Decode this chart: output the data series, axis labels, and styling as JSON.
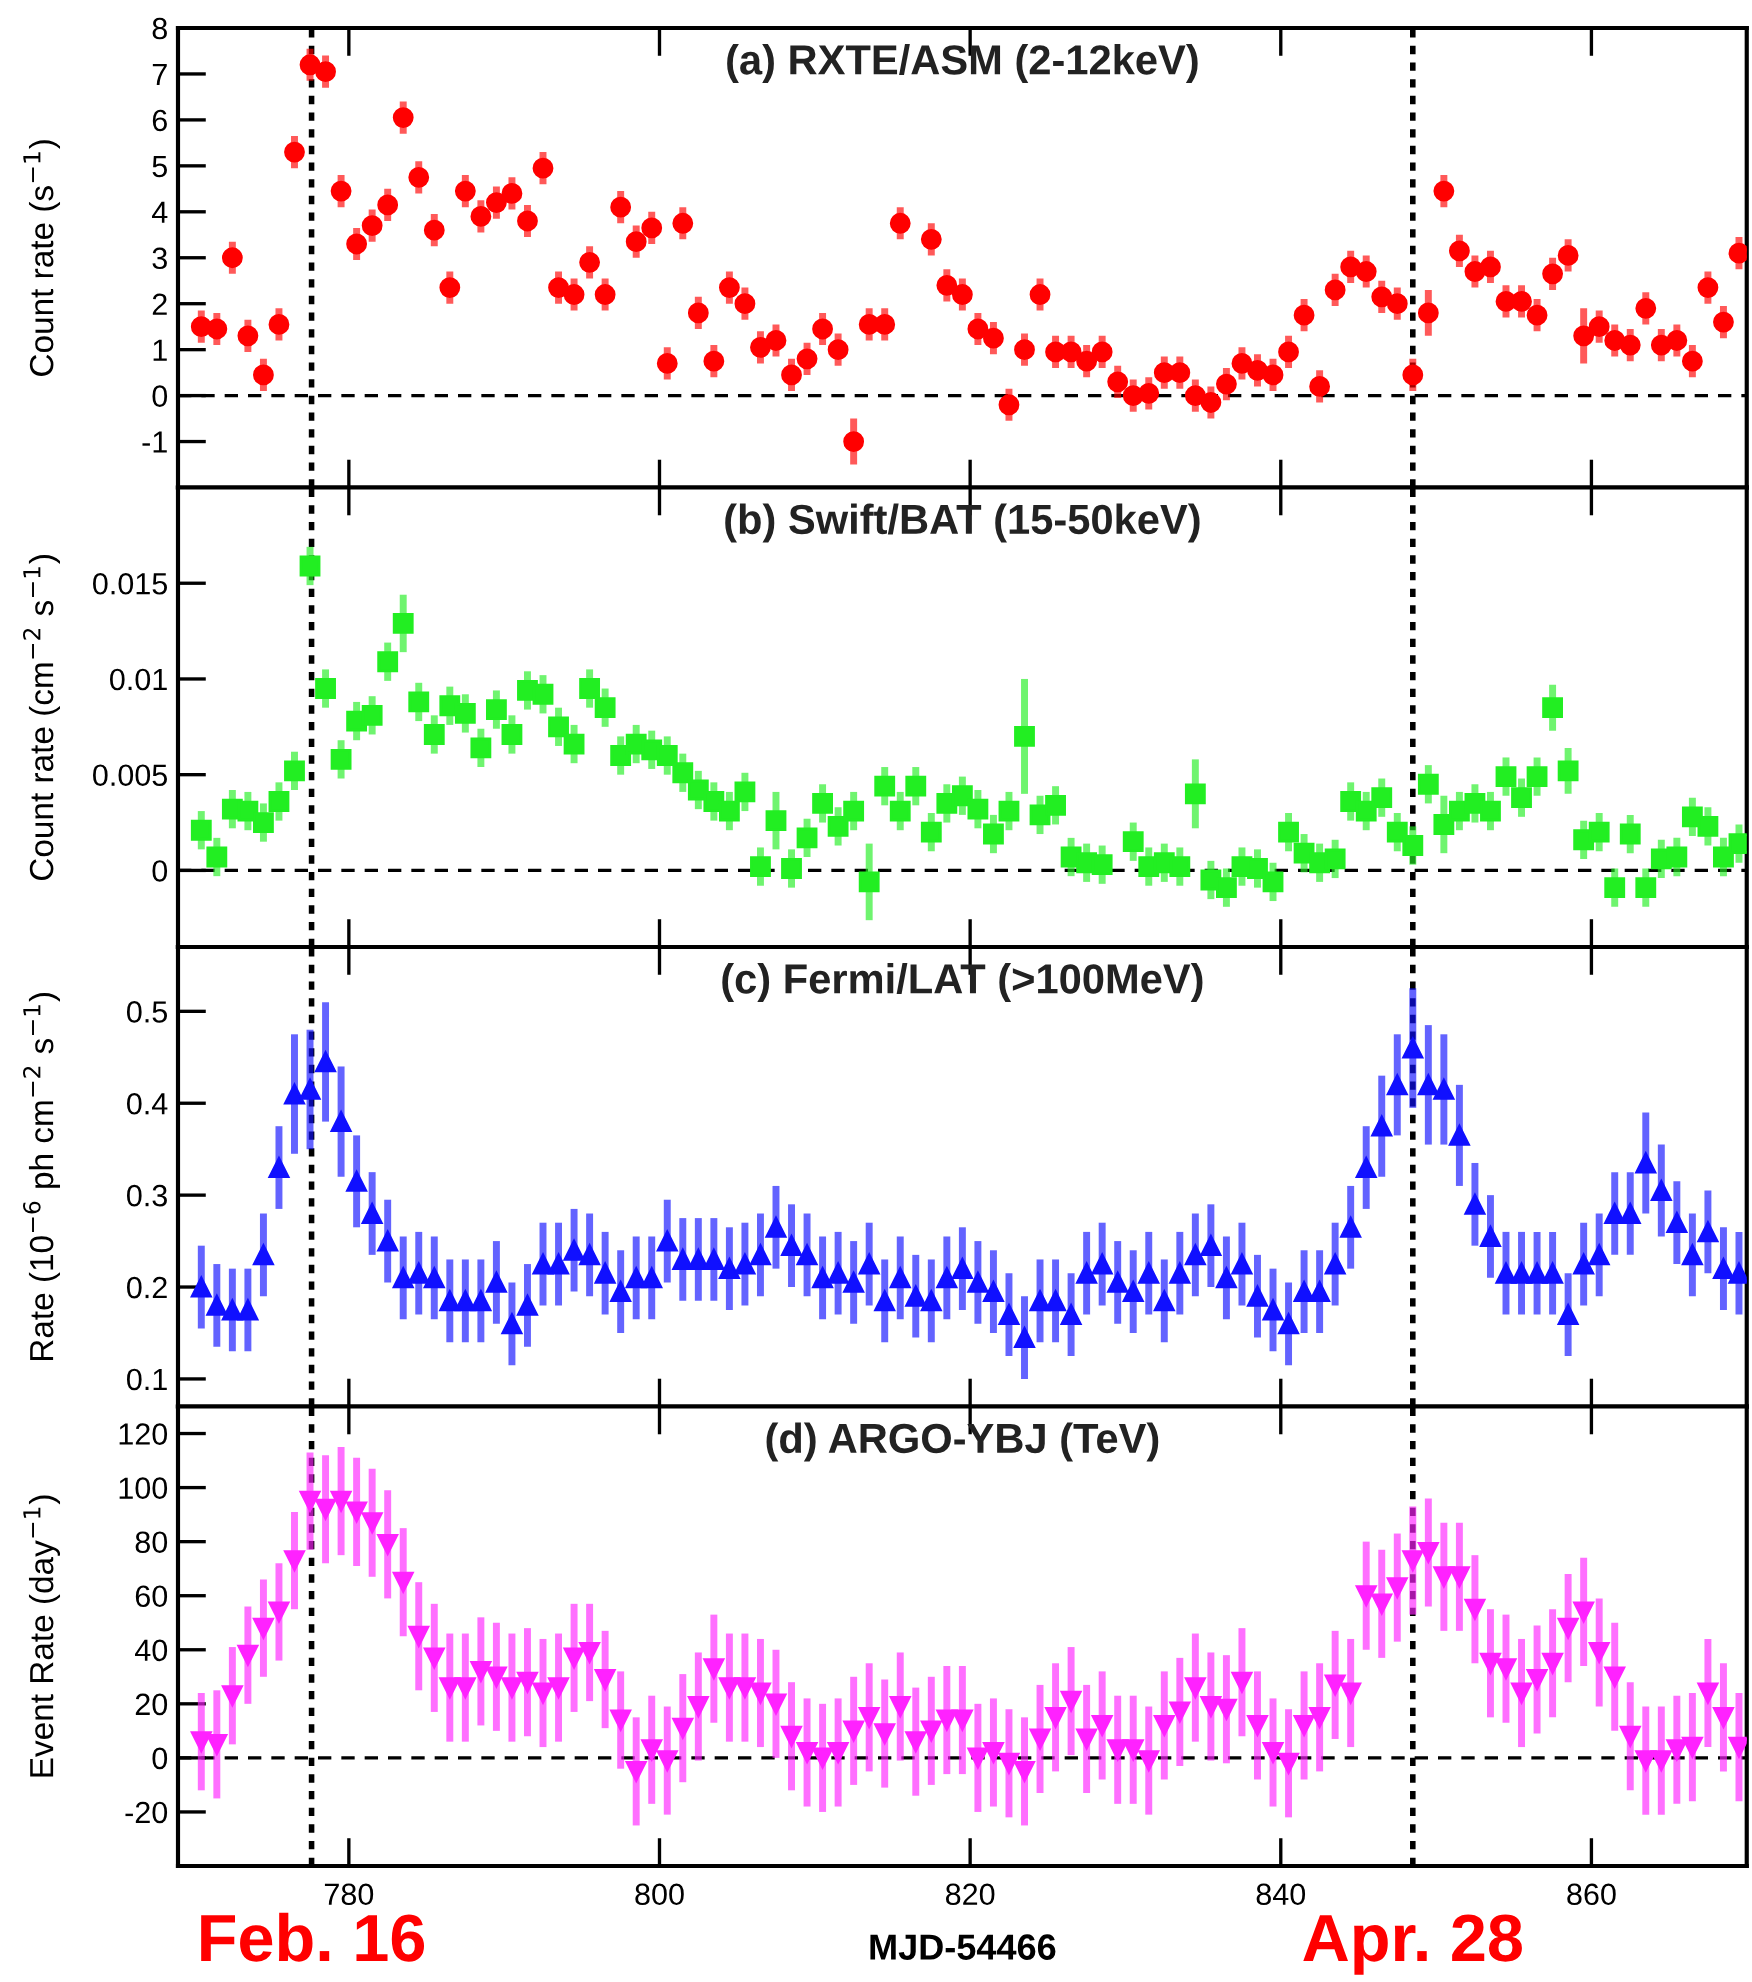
{
  "chart_data": [
    {
      "type": "scatter",
      "title": "(a) RXTE/ASM (2-12keV)",
      "ylabel": "Count rate (s$^{−1}$)",
      "marker": "circle",
      "xlim": [
        769,
        870
      ],
      "ylim": [
        -2,
        8
      ],
      "xticks": [
        780,
        800,
        820,
        840,
        860
      ],
      "yticks": [
        -1,
        0,
        1,
        2,
        3,
        4,
        5,
        6,
        7,
        8
      ],
      "tick_labels": "y",
      "ref_lines": [
        {
          "axis": "x",
          "value": 777.6,
          "line_style": "dotted",
          "color": "#000000"
        },
        {
          "axis": "x",
          "value": 848.5,
          "line_style": "dotted",
          "color": "#000000"
        },
        {
          "axis": "y",
          "value": 0,
          "line_style": "dashed",
          "color": "#000000"
        }
      ],
      "series": [
        {
          "color": "#ff0000",
          "x": [
            770.5,
            771.5,
            772.5,
            773.5,
            774.5,
            775.5,
            776.5,
            777.5,
            778.5,
            779.5,
            780.5,
            781.5,
            782.5,
            783.5,
            784.5,
            785.5,
            786.5,
            787.5,
            788.5,
            789.5,
            790.5,
            791.5,
            792.5,
            793.5,
            794.5,
            795.5,
            796.5,
            797.5,
            798.5,
            799.5,
            800.5,
            801.5,
            802.5,
            803.5,
            804.5,
            805.5,
            806.5,
            807.5,
            808.5,
            809.5,
            810.5,
            811.5,
            812.5,
            813.5,
            814.5,
            815.5,
            816.5,
            817.5,
            818.5,
            819.5,
            820.5,
            821.5,
            822.5,
            823.5,
            824.5,
            825.5,
            826.5,
            827.5,
            828.5,
            829.5,
            830.5,
            831.5,
            832.5,
            833.5,
            834.5,
            835.5,
            836.5,
            837.5,
            838.5,
            839.5,
            840.5,
            841.5,
            842.5,
            843.5,
            844.5,
            845.5,
            846.5,
            847.5,
            848.5,
            849.5,
            850.5,
            851.5,
            852.5,
            853.5,
            854.5,
            855.5,
            856.5,
            857.5,
            858.5,
            859.5,
            860.5,
            861.5,
            862.5,
            863.5,
            864.5,
            865.5,
            866.5,
            867.5,
            868.5,
            869.5
          ],
          "values": [
            1.5,
            1.45,
            3.0,
            1.3,
            0.45,
            1.55,
            5.3,
            7.2,
            7.05,
            4.45,
            3.3,
            3.7,
            4.15,
            6.05,
            4.75,
            3.6,
            2.35,
            4.45,
            3.9,
            4.2,
            4.4,
            3.8,
            4.95,
            2.35,
            2.2,
            2.9,
            2.2,
            4.1,
            3.35,
            3.65,
            0.7,
            3.75,
            1.8,
            0.75,
            2.35,
            2.0,
            1.05,
            1.2,
            0.45,
            0.8,
            1.45,
            1.0,
            -1.0,
            1.55,
            1.55,
            3.75,
            null,
            3.4,
            2.4,
            2.2,
            1.45,
            1.25,
            -0.2,
            1.0,
            2.2,
            0.95,
            0.95,
            0.75,
            0.95,
            0.3,
            0.0,
            0.05,
            0.5,
            0.5,
            0.0,
            -0.15,
            0.25,
            0.7,
            0.55,
            0.45,
            0.95,
            1.75,
            0.2,
            2.3,
            2.8,
            2.7,
            2.15,
            2.0,
            0.45,
            1.8,
            4.45,
            3.15,
            2.7,
            2.8,
            2.05,
            2.05,
            1.75,
            2.65,
            3.05,
            1.3,
            1.5,
            1.2,
            1.1,
            1.9,
            1.1,
            1.2,
            0.75,
            2.35,
            1.6,
            3.1
          ],
          "errors": [
            0.35,
            0.35,
            0.35,
            0.35,
            0.35,
            0.35,
            0.35,
            0.35,
            0.35,
            0.35,
            0.35,
            0.35,
            0.35,
            0.35,
            0.35,
            0.35,
            0.35,
            0.35,
            0.35,
            0.35,
            0.35,
            0.35,
            0.35,
            0.35,
            0.35,
            0.35,
            0.35,
            0.35,
            0.35,
            0.35,
            0.35,
            0.35,
            0.35,
            0.35,
            0.35,
            0.35,
            0.35,
            0.35,
            0.35,
            0.35,
            0.35,
            0.35,
            0.5,
            0.35,
            0.35,
            0.35,
            null,
            0.35,
            0.35,
            0.35,
            0.35,
            0.35,
            0.35,
            0.35,
            0.35,
            0.35,
            0.35,
            0.35,
            0.35,
            0.35,
            0.35,
            0.35,
            0.35,
            0.35,
            0.35,
            0.35,
            0.35,
            0.35,
            0.35,
            0.35,
            0.35,
            0.35,
            0.35,
            0.35,
            0.35,
            0.35,
            0.35,
            0.35,
            0.35,
            0.5,
            0.35,
            0.35,
            0.35,
            0.35,
            0.35,
            0.35,
            0.35,
            0.35,
            0.35,
            0.6,
            0.35,
            0.35,
            0.35,
            0.35,
            0.35,
            0.35,
            0.35,
            0.35,
            0.35,
            0.35
          ]
        }
      ]
    },
    {
      "type": "scatter",
      "title": "(b) Swift/BAT (15-50keV)",
      "ylabel": "Count rate (cm$^{−2}$ s$^{−1}$)",
      "marker": "square",
      "xlim": [
        769,
        870
      ],
      "ylim": [
        -0.004,
        0.02
      ],
      "xticks": [
        780,
        800,
        820,
        840,
        860
      ],
      "yticks": [
        0,
        0.005,
        0.01,
        0.015
      ],
      "tick_labels": "y",
      "ref_lines": [
        {
          "axis": "x",
          "value": 777.6,
          "line_style": "dotted",
          "color": "#000000"
        },
        {
          "axis": "x",
          "value": 848.5,
          "line_style": "dotted",
          "color": "#000000"
        },
        {
          "axis": "y",
          "value": 0,
          "line_style": "dashed",
          "color": "#000000"
        }
      ],
      "series": [
        {
          "color": "#22ee22",
          "x": [
            770.5,
            771.5,
            772.5,
            773.5,
            774.5,
            775.5,
            776.5,
            777.5,
            778.5,
            779.5,
            780.5,
            781.5,
            782.5,
            783.5,
            784.5,
            785.5,
            786.5,
            787.5,
            788.5,
            789.5,
            790.5,
            791.5,
            792.5,
            793.5,
            794.5,
            795.5,
            796.5,
            797.5,
            798.5,
            799.5,
            800.5,
            801.5,
            802.5,
            803.5,
            804.5,
            805.5,
            806.5,
            807.5,
            808.5,
            809.5,
            810.5,
            811.5,
            812.5,
            813.5,
            814.5,
            815.5,
            816.5,
            817.5,
            818.5,
            819.5,
            820.5,
            821.5,
            822.5,
            823.5,
            824.5,
            825.5,
            826.5,
            827.5,
            828.5,
            829.5,
            830.5,
            831.5,
            832.5,
            833.5,
            834.5,
            835.5,
            836.5,
            837.5,
            838.5,
            839.5,
            840.5,
            841.5,
            842.5,
            843.5,
            844.5,
            845.5,
            846.5,
            847.5,
            848.5,
            849.5,
            850.5,
            851.5,
            852.5,
            853.5,
            854.5,
            855.5,
            856.5,
            857.5,
            858.5,
            859.5,
            860.5,
            861.5,
            862.5,
            863.5,
            864.5,
            865.5,
            866.5,
            867.5,
            868.5,
            869.5
          ],
          "values": [
            0.0021,
            0.0007,
            0.0032,
            0.0031,
            0.0025,
            0.0036,
            0.0052,
            0.0159,
            0.0095,
            0.0058,
            0.0078,
            0.0081,
            0.0109,
            0.0129,
            0.0088,
            0.0071,
            0.0086,
            0.0082,
            0.0064,
            0.0084,
            0.0071,
            0.0094,
            0.0092,
            0.0075,
            0.0066,
            0.0095,
            0.0085,
            0.006,
            0.0066,
            0.0063,
            0.006,
            0.0051,
            0.0042,
            0.0036,
            0.0031,
            0.0041,
            0.0002,
            0.0026,
            0.0001,
            0.0017,
            0.0035,
            0.0023,
            0.0031,
            -0.0006,
            0.0044,
            0.0031,
            0.0044,
            0.002,
            0.0035,
            0.0039,
            0.0032,
            0.0019,
            0.0031,
            0.007,
            0.0029,
            0.0034,
            0.0007,
            0.0004,
            0.0003,
            null,
            0.0015,
            0.0002,
            0.0004,
            0.0002,
            0.004,
            -0.0005,
            -0.0009,
            0.0002,
            0.0001,
            -0.0006,
            0.002,
            0.0009,
            0.0004,
            0.0006,
            0.0036,
            0.0031,
            0.0038,
            0.002,
            0.0013,
            0.0045,
            0.0024,
            0.0031,
            0.0035,
            0.0031,
            0.0049,
            0.0038,
            0.0049,
            0.0085,
            0.0052,
            0.0016,
            0.002,
            -0.0009,
            0.0019,
            -0.0009,
            0.0006,
            0.0007,
            0.0028,
            0.0023,
            0.0007,
            0.0014
          ],
          "errors": [
            0.001,
            0.001,
            0.001,
            0.001,
            0.001,
            0.001,
            0.001,
            0.001,
            0.001,
            0.001,
            0.001,
            0.001,
            0.001,
            0.0015,
            0.001,
            0.001,
            0.001,
            0.001,
            0.001,
            0.001,
            0.001,
            0.001,
            0.001,
            0.001,
            0.001,
            0.001,
            0.001,
            0.001,
            0.001,
            0.001,
            0.001,
            0.001,
            0.001,
            0.001,
            0.001,
            0.001,
            0.001,
            0.0015,
            0.001,
            0.001,
            0.001,
            0.001,
            0.001,
            0.002,
            0.001,
            0.001,
            0.001,
            0.001,
            0.001,
            0.001,
            0.001,
            0.001,
            0.001,
            0.003,
            0.001,
            0.001,
            0.001,
            0.001,
            0.001,
            null,
            0.001,
            0.001,
            0.001,
            0.001,
            0.0018,
            0.001,
            0.001,
            0.001,
            0.001,
            0.001,
            0.001,
            0.001,
            0.001,
            0.001,
            0.001,
            0.001,
            0.001,
            0.001,
            0.001,
            0.001,
            0.0015,
            0.001,
            0.001,
            0.001,
            0.001,
            0.001,
            0.001,
            0.0012,
            0.0012,
            0.001,
            0.001,
            0.001,
            0.001,
            0.001,
            0.001,
            0.001,
            0.001,
            0.001,
            0.001,
            0.001
          ]
        }
      ]
    },
    {
      "type": "scatter",
      "title": "(c) Fermi/LAT (>100MeV)",
      "ylabel": "Rate (10$^{−6}$ ph cm$^{−2}$ s$^{−1}$)",
      "marker": "triangle",
      "xlim": [
        769,
        870
      ],
      "ylim": [
        0.07,
        0.57
      ],
      "xticks": [
        780,
        800,
        820,
        840,
        860
      ],
      "yticks": [
        0.1,
        0.2,
        0.3,
        0.4,
        0.5
      ],
      "tick_labels": "y",
      "ref_lines": [
        {
          "axis": "x",
          "value": 777.6,
          "line_style": "dotted",
          "color": "#000000"
        },
        {
          "axis": "x",
          "value": 848.5,
          "line_style": "dotted",
          "color": "#000000"
        }
      ],
      "series": [
        {
          "color": "#1010ff",
          "x": [
            770.5,
            771.5,
            772.5,
            773.5,
            774.5,
            775.5,
            776.5,
            777.5,
            778.5,
            779.5,
            780.5,
            781.5,
            782.5,
            783.5,
            784.5,
            785.5,
            786.5,
            787.5,
            788.5,
            789.5,
            790.5,
            791.5,
            792.5,
            793.5,
            794.5,
            795.5,
            796.5,
            797.5,
            798.5,
            799.5,
            800.5,
            801.5,
            802.5,
            803.5,
            804.5,
            805.5,
            806.5,
            807.5,
            808.5,
            809.5,
            810.5,
            811.5,
            812.5,
            813.5,
            814.5,
            815.5,
            816.5,
            817.5,
            818.5,
            819.5,
            820.5,
            821.5,
            822.5,
            823.5,
            824.5,
            825.5,
            826.5,
            827.5,
            828.5,
            829.5,
            830.5,
            831.5,
            832.5,
            833.5,
            834.5,
            835.5,
            836.5,
            837.5,
            838.5,
            839.5,
            840.5,
            841.5,
            842.5,
            843.5,
            844.5,
            845.5,
            846.5,
            847.5,
            848.5,
            849.5,
            850.5,
            851.5,
            852.5,
            853.5,
            854.5,
            855.5,
            856.5,
            857.5,
            858.5,
            859.5,
            860.5,
            861.5,
            862.5,
            863.5,
            864.5,
            865.5,
            866.5,
            867.5,
            868.5,
            869.5
          ],
          "values": [
            0.2,
            0.18,
            0.175,
            0.175,
            0.235,
            0.33,
            0.41,
            0.415,
            0.445,
            0.38,
            0.315,
            0.28,
            0.25,
            0.21,
            0.215,
            0.21,
            0.185,
            0.185,
            0.185,
            0.205,
            0.16,
            0.18,
            0.225,
            0.225,
            0.24,
            0.235,
            0.215,
            0.195,
            0.21,
            0.21,
            0.25,
            0.23,
            0.23,
            0.23,
            0.22,
            0.225,
            0.235,
            0.265,
            0.245,
            0.235,
            0.21,
            0.215,
            0.205,
            0.225,
            0.185,
            0.21,
            0.19,
            0.185,
            0.21,
            0.22,
            0.205,
            0.195,
            0.17,
            0.145,
            0.185,
            0.185,
            0.17,
            0.215,
            0.225,
            0.205,
            0.195,
            0.215,
            0.185,
            0.215,
            0.235,
            0.245,
            0.21,
            0.225,
            0.19,
            0.175,
            0.16,
            0.195,
            0.195,
            0.225,
            0.265,
            0.33,
            0.375,
            0.42,
            0.46,
            0.42,
            0.415,
            0.365,
            0.29,
            0.255,
            0.215,
            0.215,
            0.215,
            0.215,
            0.17,
            0.225,
            0.235,
            0.28,
            0.28,
            0.335,
            0.305,
            0.27,
            0.235,
            0.26,
            0.22,
            0.215
          ],
          "errors": [
            0.045,
            0.045,
            0.045,
            0.045,
            0.045,
            0.045,
            0.065,
            0.065,
            0.065,
            0.06,
            0.05,
            0.045,
            0.045,
            0.045,
            0.045,
            0.045,
            0.045,
            0.045,
            0.045,
            0.045,
            0.045,
            0.045,
            0.045,
            0.045,
            0.045,
            0.045,
            0.045,
            0.045,
            0.045,
            0.045,
            0.045,
            0.045,
            0.045,
            0.045,
            0.045,
            0.045,
            0.045,
            0.045,
            0.045,
            0.045,
            0.045,
            0.045,
            0.045,
            0.045,
            0.045,
            0.045,
            0.045,
            0.045,
            0.045,
            0.045,
            0.045,
            0.045,
            0.045,
            0.045,
            0.045,
            0.045,
            0.045,
            0.045,
            0.045,
            0.045,
            0.045,
            0.045,
            0.045,
            0.045,
            0.045,
            0.045,
            0.045,
            0.045,
            0.045,
            0.045,
            0.045,
            0.045,
            0.045,
            0.045,
            0.045,
            0.045,
            0.055,
            0.055,
            0.065,
            0.065,
            0.06,
            0.055,
            0.045,
            0.045,
            0.045,
            0.045,
            0.045,
            0.045,
            0.045,
            0.045,
            0.045,
            0.045,
            0.045,
            0.055,
            0.05,
            0.045,
            0.045,
            0.045,
            0.045,
            0.045
          ]
        }
      ]
    },
    {
      "type": "scatter",
      "title": "(d) ARGO-YBJ (TeV)",
      "ylabel": "Event Rate (day$^{−1}$)",
      "xlabel": "MJD-54466",
      "marker": "triangle_down",
      "xlim": [
        769,
        870
      ],
      "ylim": [
        -40,
        130
      ],
      "xticks": [
        780,
        800,
        820,
        840,
        860
      ],
      "yticks": [
        -20,
        0,
        20,
        40,
        60,
        80,
        100,
        120
      ],
      "ref_lines": [
        {
          "axis": "x",
          "value": 777.6,
          "line_style": "dotted",
          "color": "#000000",
          "label": "Feb. 16"
        },
        {
          "axis": "x",
          "value": 848.5,
          "line_style": "dotted",
          "color": "#000000",
          "label": "Apr. 28"
        },
        {
          "axis": "y",
          "value": 0,
          "line_style": "dashed",
          "color": "#000000"
        }
      ],
      "series": [
        {
          "color": "#ff22ff",
          "x": [
            770.5,
            771.5,
            772.5,
            773.5,
            774.5,
            775.5,
            776.5,
            777.5,
            778.5,
            779.5,
            780.5,
            781.5,
            782.5,
            783.5,
            784.5,
            785.5,
            786.5,
            787.5,
            788.5,
            789.5,
            790.5,
            791.5,
            792.5,
            793.5,
            794.5,
            795.5,
            796.5,
            797.5,
            798.5,
            799.5,
            800.5,
            801.5,
            802.5,
            803.5,
            804.5,
            805.5,
            806.5,
            807.5,
            808.5,
            809.5,
            810.5,
            811.5,
            812.5,
            813.5,
            814.5,
            815.5,
            816.5,
            817.5,
            818.5,
            819.5,
            820.5,
            821.5,
            822.5,
            823.5,
            824.5,
            825.5,
            826.5,
            827.5,
            828.5,
            829.5,
            830.5,
            831.5,
            832.5,
            833.5,
            834.5,
            835.5,
            836.5,
            837.5,
            838.5,
            839.5,
            840.5,
            841.5,
            842.5,
            843.5,
            844.5,
            845.5,
            846.5,
            847.5,
            848.5,
            849.5,
            850.5,
            851.5,
            852.5,
            853.5,
            854.5,
            855.5,
            856.5,
            857.5,
            858.5,
            859.5,
            860.5,
            861.5,
            862.5,
            863.5,
            864.5,
            865.5,
            866.5,
            867.5,
            868.5,
            869.5
          ],
          "values": [
            6,
            5,
            23,
            38,
            48,
            54,
            73,
            95,
            92,
            95,
            91,
            87,
            79,
            65,
            45,
            37,
            26,
            26,
            32,
            30,
            26,
            28,
            24,
            26,
            37,
            39,
            29,
            14,
            -5,
            3,
            -1,
            11,
            19,
            33,
            26,
            26,
            24,
            20,
            8,
            2,
            0,
            2,
            10,
            15,
            9,
            19,
            6,
            10,
            14,
            14,
            0,
            2,
            -2,
            -5,
            7,
            15,
            21,
            7,
            12,
            3,
            3,
            -1,
            12,
            17,
            26,
            19,
            18,
            28,
            12,
            2,
            -2,
            12,
            15,
            27,
            24,
            60,
            57,
            63,
            73,
            76,
            67,
            67,
            55,
            35,
            33,
            24,
            29,
            35,
            48,
            54,
            39,
            30,
            8,
            -1,
            -1,
            3,
            4,
            24,
            15,
            4
          ],
          "errors": [
            18,
            20,
            18,
            18,
            18,
            18,
            18,
            18,
            20,
            20,
            20,
            20,
            20,
            20,
            20,
            20,
            20,
            20,
            20,
            20,
            20,
            20,
            20,
            20,
            20,
            18,
            18,
            18,
            20,
            20,
            20,
            20,
            20,
            20,
            20,
            20,
            20,
            20,
            20,
            20,
            20,
            20,
            20,
            20,
            20,
            20,
            20,
            20,
            20,
            20,
            20,
            20,
            20,
            20,
            20,
            20,
            20,
            20,
            20,
            20,
            20,
            20,
            20,
            20,
            20,
            20,
            20,
            20,
            20,
            20,
            20,
            20,
            20,
            20,
            20,
            20,
            20,
            20,
            20,
            20,
            20,
            20,
            20,
            20,
            20,
            20,
            20,
            20,
            20,
            20,
            20,
            20,
            20,
            20,
            20,
            20,
            20,
            20,
            20,
            20
          ]
        }
      ]
    }
  ]
}
